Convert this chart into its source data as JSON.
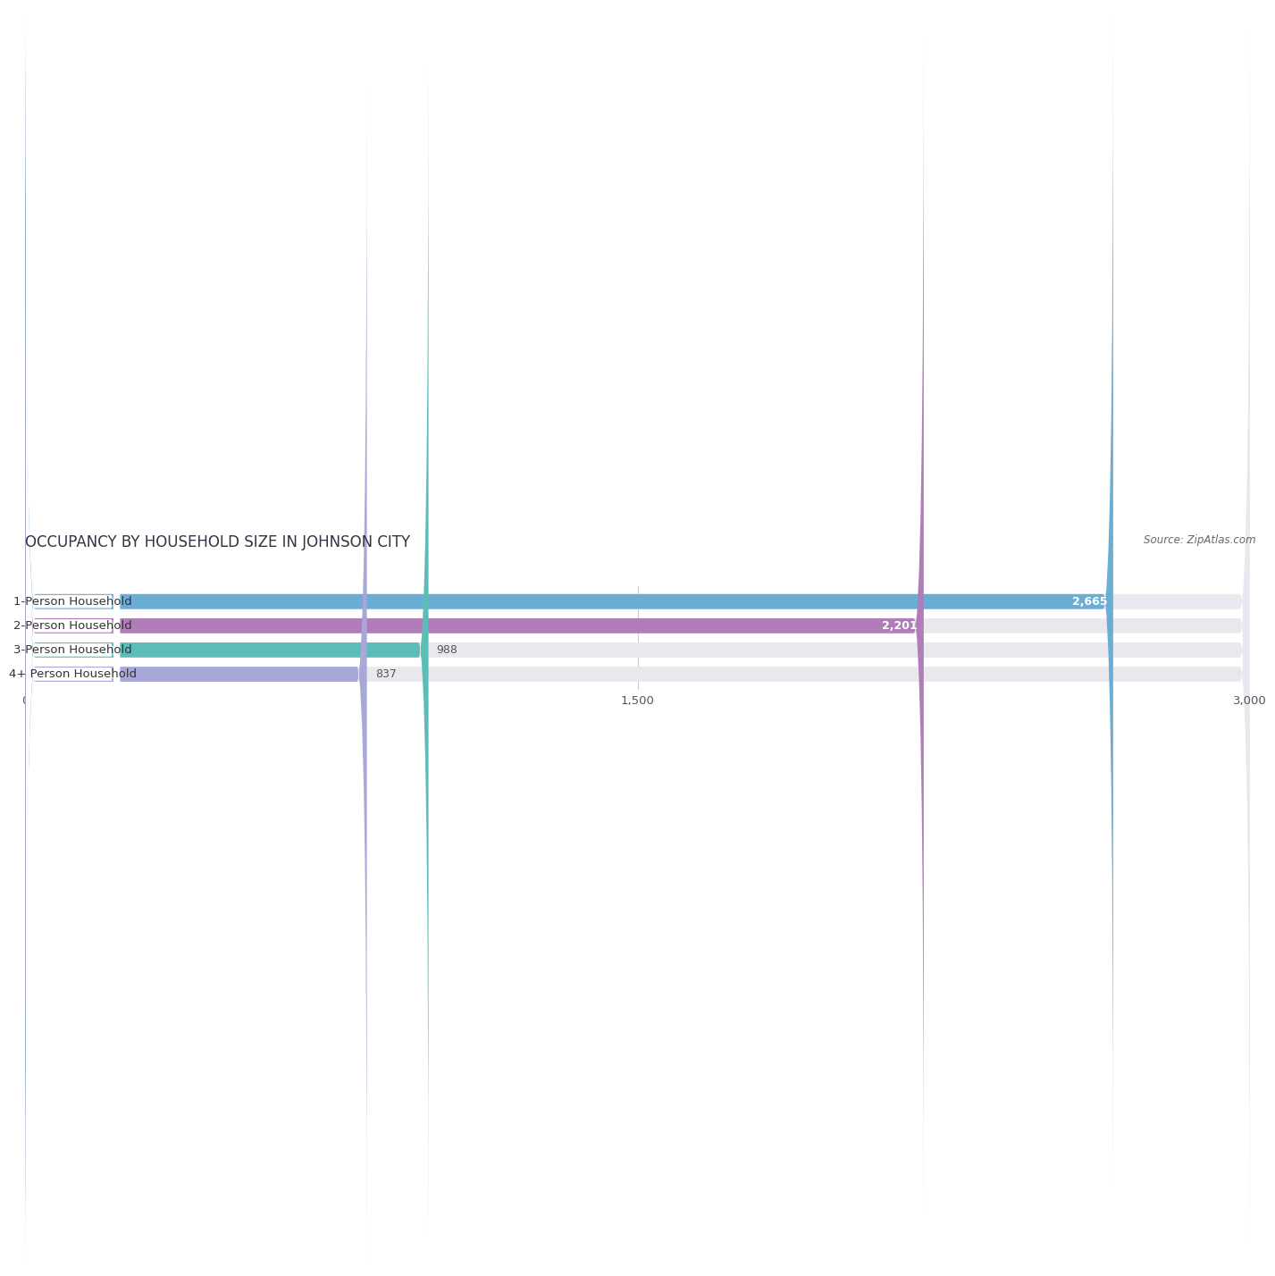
{
  "title": "OCCUPANCY BY HOUSEHOLD SIZE IN JOHNSON CITY",
  "source": "Source: ZipAtlas.com",
  "categories": [
    "1-Person Household",
    "2-Person Household",
    "3-Person Household",
    "4+ Person Household"
  ],
  "values": [
    2665,
    2201,
    988,
    837
  ],
  "bar_colors": [
    "#6aadd5",
    "#b07db8",
    "#5bbcb8",
    "#a8a8d8"
  ],
  "bar_bg_colors": [
    "#e8e8ee",
    "#e8e8ee",
    "#e8e8ee",
    "#e8e8ee"
  ],
  "value_inside": [
    true,
    true,
    false,
    false
  ],
  "xlim": [
    0,
    3000
  ],
  "xticks": [
    0,
    1500,
    3000
  ],
  "title_fontsize": 12,
  "label_fontsize": 9.5,
  "value_fontsize": 9,
  "source_fontsize": 8.5,
  "background_color": "#ffffff"
}
